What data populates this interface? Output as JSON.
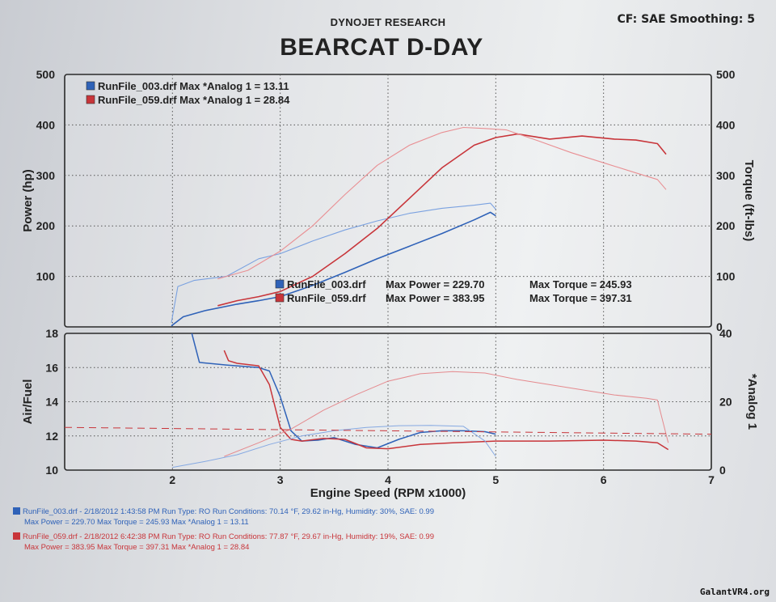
{
  "header": {
    "company": "DYNOJET RESEARCH",
    "correction": "CF: SAE  Smoothing: 5"
  },
  "chart_data": {
    "type": "line",
    "title": "BEARCAT D-DAY",
    "xlabel": "Engine Speed (RPM x1000)",
    "xlim": [
      1,
      7
    ],
    "xticks": [
      2,
      3,
      4,
      5,
      6,
      7
    ],
    "grid": true,
    "series_colors": {
      "run003": "#2f62b8",
      "run059": "#c8353a"
    },
    "top_panel": {
      "ylabel_left": "Power (hp)",
      "ylabel_right": "Torque (ft-lbs)",
      "ylim_left": [
        0,
        500
      ],
      "ylim_right": [
        0,
        500
      ],
      "yticks": [
        100,
        200,
        300,
        400,
        500
      ],
      "yticks_right": [
        0,
        100,
        200,
        300,
        400,
        500
      ],
      "legend": [
        "RunFile_003.drf Max *Analog 1 = 13.11",
        "RunFile_059.drf Max *Analog 1 = 28.84"
      ],
      "annotations": [
        {
          "file": "RunFile_003.drf",
          "power": "Max Power = 229.70",
          "torque": "Max Torque = 245.93"
        },
        {
          "file": "RunFile_059.drf",
          "power": "Max Power = 383.95",
          "torque": "Max Torque = 397.31"
        }
      ],
      "series": [
        {
          "name": "RunFile_003.drf Power",
          "color": "#2f62b8",
          "width": 1.6,
          "x": [
            1.99,
            2.1,
            2.3,
            2.6,
            2.8,
            3.0,
            3.3,
            3.6,
            3.9,
            4.2,
            4.5,
            4.8,
            4.95,
            5.0
          ],
          "y": [
            2,
            20,
            32,
            45,
            52,
            60,
            82,
            108,
            135,
            160,
            185,
            212,
            227,
            220
          ]
        },
        {
          "name": "RunFile_003.drf Torque",
          "color": "#7aa1e0",
          "width": 1.1,
          "x": [
            1.99,
            2.05,
            2.2,
            2.5,
            2.8,
            3.0,
            3.3,
            3.6,
            3.9,
            4.2,
            4.5,
            4.8,
            4.95,
            5.0
          ],
          "y": [
            8,
            80,
            92,
            100,
            135,
            145,
            170,
            192,
            210,
            225,
            235,
            241,
            245,
            233
          ]
        },
        {
          "name": "RunFile_059.drf Power",
          "color": "#c8353a",
          "width": 1.6,
          "x": [
            2.42,
            2.6,
            2.8,
            3.0,
            3.3,
            3.6,
            3.9,
            4.2,
            4.5,
            4.8,
            5.0,
            5.2,
            5.5,
            5.8,
            6.1,
            6.3,
            6.5,
            6.58
          ],
          "y": [
            42,
            52,
            60,
            70,
            100,
            145,
            195,
            255,
            315,
            360,
            375,
            382,
            372,
            378,
            372,
            370,
            363,
            342
          ]
        },
        {
          "name": "RunFile_059.drf Torque",
          "color": "#e98f93",
          "width": 1.1,
          "x": [
            2.42,
            2.5,
            2.7,
            3.0,
            3.3,
            3.6,
            3.9,
            4.2,
            4.5,
            4.7,
            4.9,
            5.1,
            5.4,
            5.7,
            6.0,
            6.3,
            6.5,
            6.58
          ],
          "y": [
            95,
            100,
            112,
            150,
            200,
            262,
            320,
            360,
            385,
            395,
            393,
            390,
            368,
            345,
            325,
            305,
            292,
            272
          ]
        }
      ]
    },
    "bottom_panel": {
      "ylabel_left": "Air/Fuel",
      "ylabel_right": "*Analog 1",
      "ylim_left": [
        10,
        18
      ],
      "ylim_right": [
        0,
        40
      ],
      "yticks": [
        10,
        12,
        14,
        16,
        18
      ],
      "yticks_right": [
        0,
        20,
        40
      ],
      "series": [
        {
          "name": "RunFile_003.drf Air/Fuel",
          "color": "#2f62b8",
          "width": 1.5,
          "x": [
            2.18,
            2.25,
            2.5,
            2.8,
            2.9,
            3.0,
            3.1,
            3.2,
            3.35,
            3.5,
            3.7,
            3.9,
            4.1,
            4.3,
            4.5,
            4.7,
            4.9,
            5.0
          ],
          "y": [
            18,
            16.3,
            16.15,
            16.0,
            15.8,
            14.3,
            12.3,
            11.7,
            11.75,
            11.9,
            11.5,
            11.3,
            11.8,
            12.2,
            12.3,
            12.3,
            12.25,
            12.1
          ]
        },
        {
          "name": "RunFile_059.drf Air/Fuel",
          "color": "#c8353a",
          "width": 1.5,
          "x": [
            2.48,
            2.52,
            2.6,
            2.8,
            2.9,
            3.0,
            3.1,
            3.2,
            3.4,
            3.6,
            3.8,
            4.0,
            4.3,
            4.6,
            5.0,
            5.5,
            6.0,
            6.3,
            6.5,
            6.6
          ],
          "y": [
            17.0,
            16.4,
            16.25,
            16.1,
            15.0,
            12.5,
            11.8,
            11.7,
            11.85,
            11.8,
            11.3,
            11.25,
            11.5,
            11.6,
            11.7,
            11.7,
            11.75,
            11.7,
            11.6,
            11.2
          ]
        },
        {
          "name": "RunFile_003.drf *Analog 1",
          "color": "#86a9e2",
          "width": 1.0,
          "x": [
            2.0,
            2.3,
            2.6,
            2.9,
            3.2,
            3.5,
            3.8,
            4.1,
            4.4,
            4.7,
            4.9,
            5.0
          ],
          "y": [
            0.8,
            2.5,
            4.5,
            7.5,
            10,
            11.5,
            12.5,
            13.0,
            13.1,
            12.8,
            8.5,
            4.0
          ]
        },
        {
          "name": "RunFile_059.drf *Analog 1",
          "color": "#e58a8e",
          "width": 1.0,
          "x": [
            2.48,
            2.8,
            3.1,
            3.4,
            3.7,
            4.0,
            4.3,
            4.6,
            4.9,
            5.2,
            5.5,
            5.8,
            6.1,
            6.4,
            6.5,
            6.6
          ],
          "y": [
            4.0,
            8.0,
            12.0,
            17.5,
            22.0,
            26.0,
            28.2,
            28.8,
            28.4,
            26.5,
            25.0,
            23.5,
            22.0,
            21.0,
            20.5,
            8.0
          ]
        }
      ],
      "reference_lines": [
        {
          "name": "RunFile_059.drf reference",
          "color": "#c8353a",
          "dash": true,
          "x": [
            1.0,
            7.0
          ],
          "y": [
            12.5,
            12.1
          ]
        }
      ]
    }
  },
  "footer": [
    {
      "color": "#2f62b8",
      "line1": "RunFile_003.drf - 2/18/2012 1:43:58 PM  Run Type: RO  Run Conditions: 70.14 °F, 29.62 in-Hg,  Humidity:  30%, SAE: 0.99",
      "line2": "Max Power = 229.70  Max Torque = 245.93  Max *Analog 1 = 13.11"
    },
    {
      "color": "#c8353a",
      "line1": "RunFile_059.drf - 2/18/2012 6:42:38 PM  Run Type: RO  Run Conditions: 77.87 °F, 29.67 in-Hg,  Humidity:  19%, SAE: 0.99",
      "line2": "Max Power = 383.95  Max Torque = 397.31  Max *Analog 1 = 28.84"
    }
  ],
  "watermark": "GalantVR4.org"
}
